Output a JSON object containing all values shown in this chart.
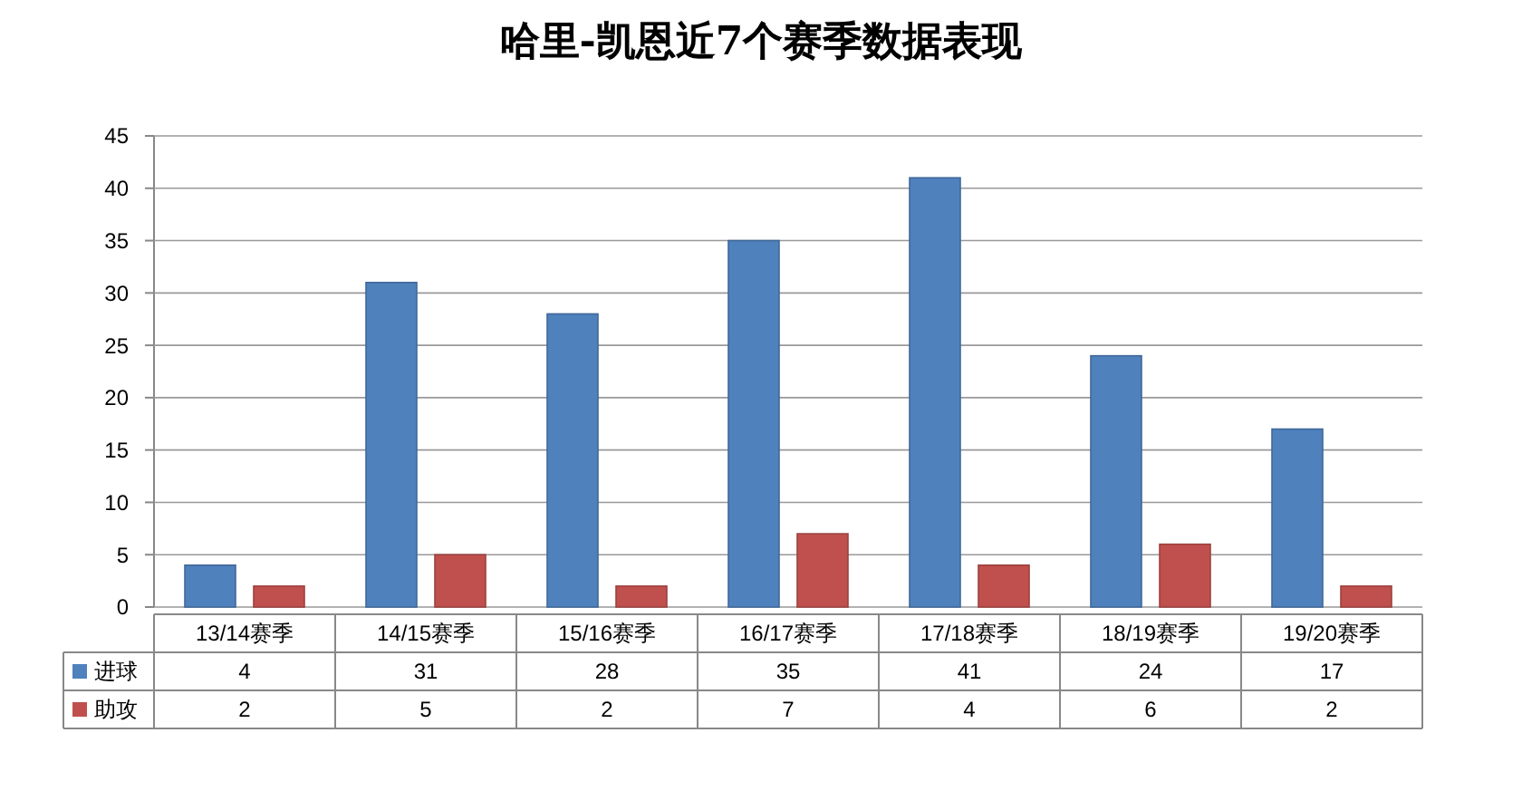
{
  "chart_data": {
    "type": "bar",
    "title": "哈里-凯恩近7个赛季数据表现",
    "categories": [
      "13/14赛季",
      "14/15赛季",
      "15/16赛季",
      "16/17赛季",
      "17/18赛季",
      "18/19赛季",
      "19/20赛季"
    ],
    "series": [
      {
        "name": "进球",
        "color": "#4f81bd",
        "values": [
          4,
          31,
          28,
          35,
          41,
          24,
          17
        ]
      },
      {
        "name": "助攻",
        "color": "#c0504d",
        "values": [
          2,
          5,
          2,
          7,
          4,
          6,
          2
        ]
      }
    ],
    "ylim": [
      0,
      45
    ],
    "yticks": [
      0,
      5,
      10,
      15,
      20,
      25,
      30,
      35,
      40,
      45
    ],
    "grid": "y",
    "data_labels": true,
    "legend": "bottom"
  }
}
